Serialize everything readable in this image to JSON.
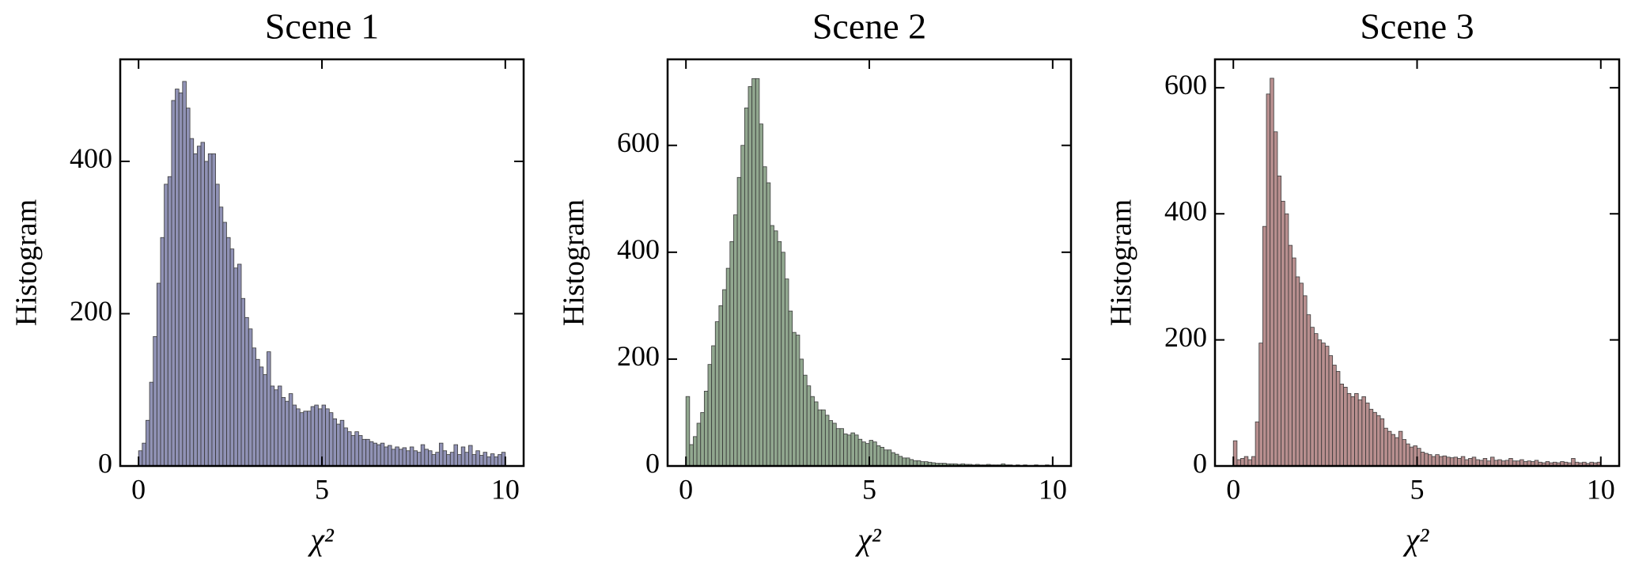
{
  "chart_data": [
    {
      "type": "histogram",
      "title": "Scene 1",
      "xlabel": "χ²",
      "ylabel": "Histogram",
      "color": "#6b6e9c",
      "bins": [
        0,
        0.1,
        0.2,
        0.3,
        0.4,
        0.5,
        0.6,
        0.7,
        0.8,
        0.9,
        1,
        1.1,
        1.2,
        1.3,
        1.4,
        1.5,
        1.6,
        1.7,
        1.8,
        1.9,
        2,
        2.1,
        2.2,
        2.3,
        2.4,
        2.5,
        2.6,
        2.7,
        2.8,
        2.9,
        3,
        3.1,
        3.2,
        3.3,
        3.4,
        3.5,
        3.6,
        3.7,
        3.8,
        3.9,
        4,
        4.1,
        4.2,
        4.3,
        4.4,
        4.5,
        4.6,
        4.7,
        4.8,
        4.9,
        5,
        5.1,
        5.2,
        5.3,
        5.4,
        5.5,
        5.6,
        5.7,
        5.8,
        5.9,
        6,
        6.1,
        6.2,
        6.3,
        6.4,
        6.5,
        6.6,
        6.7,
        6.8,
        6.9,
        7,
        7.1,
        7.2,
        7.3,
        7.4,
        7.5,
        7.6,
        7.7,
        7.8,
        7.9,
        8,
        8.1,
        8.2,
        8.3,
        8.4,
        8.5,
        8.6,
        8.7,
        8.8,
        8.9,
        9,
        9.1,
        9.2,
        9.3,
        9.4,
        9.5,
        9.6,
        9.7,
        9.8,
        9.9,
        10
      ],
      "values": [
        20,
        30,
        60,
        110,
        170,
        240,
        300,
        370,
        380,
        480,
        495,
        490,
        505,
        470,
        430,
        410,
        420,
        425,
        400,
        410,
        410,
        370,
        340,
        320,
        300,
        285,
        260,
        265,
        220,
        195,
        180,
        155,
        140,
        130,
        120,
        150,
        105,
        100,
        105,
        90,
        85,
        95,
        80,
        75,
        70,
        72,
        72,
        78,
        80,
        75,
        80,
        75,
        70,
        62,
        55,
        60,
        50,
        45,
        40,
        45,
        40,
        35,
        35,
        32,
        30,
        28,
        30,
        25,
        27,
        22,
        25,
        22,
        24,
        20,
        25,
        20,
        18,
        28,
        22,
        20,
        15,
        18,
        30,
        20,
        15,
        18,
        28,
        15,
        25,
        18,
        27,
        15,
        20,
        14,
        18,
        12,
        16,
        12,
        15,
        18
      ],
      "xlim": [
        -0.5,
        10.5
      ],
      "ylim": [
        0,
        534
      ],
      "xticks": [
        0,
        5,
        10
      ],
      "yticks": [
        0,
        200,
        400
      ]
    },
    {
      "type": "histogram",
      "title": "Scene 2",
      "xlabel": "χ²",
      "ylabel": "Histogram",
      "color": "#6c8a6a",
      "bins": [
        0,
        0.1,
        0.2,
        0.3,
        0.4,
        0.5,
        0.6,
        0.7,
        0.8,
        0.9,
        1,
        1.1,
        1.2,
        1.3,
        1.4,
        1.5,
        1.6,
        1.7,
        1.8,
        1.9,
        2,
        2.1,
        2.2,
        2.3,
        2.4,
        2.5,
        2.6,
        2.7,
        2.8,
        2.9,
        3,
        3.1,
        3.2,
        3.3,
        3.4,
        3.5,
        3.6,
        3.7,
        3.8,
        3.9,
        4,
        4.1,
        4.2,
        4.3,
        4.4,
        4.5,
        4.6,
        4.7,
        4.8,
        4.9,
        5,
        5.1,
        5.2,
        5.3,
        5.4,
        5.5,
        5.6,
        5.7,
        5.8,
        5.9,
        6,
        6.1,
        6.2,
        6.3,
        6.4,
        6.5,
        6.6,
        6.7,
        6.8,
        6.9,
        7,
        7.1,
        7.2,
        7.3,
        7.4,
        7.5,
        7.6,
        7.7,
        7.8,
        7.9,
        8,
        8.1,
        8.2,
        8.3,
        8.4,
        8.5,
        8.6,
        8.7,
        8.8,
        8.9,
        9,
        9.1,
        9.2,
        9.3,
        9.4,
        9.5,
        9.6,
        9.7,
        9.8,
        9.9,
        10
      ],
      "values": [
        130,
        40,
        55,
        80,
        100,
        140,
        190,
        225,
        270,
        300,
        330,
        370,
        420,
        470,
        540,
        600,
        670,
        710,
        725,
        725,
        640,
        560,
        530,
        450,
        440,
        420,
        400,
        350,
        290,
        250,
        245,
        200,
        170,
        150,
        130,
        120,
        105,
        105,
        95,
        85,
        80,
        70,
        70,
        60,
        58,
        62,
        58,
        50,
        45,
        42,
        48,
        45,
        38,
        35,
        30,
        30,
        25,
        22,
        18,
        15,
        15,
        12,
        10,
        10,
        8,
        8,
        7,
        6,
        5,
        5,
        5,
        4,
        4,
        4,
        3,
        4,
        3,
        3,
        2,
        3,
        2,
        2,
        3,
        2,
        2,
        2,
        4,
        2,
        2,
        1,
        2,
        1,
        2,
        1,
        1,
        2,
        1,
        1,
        2,
        1
      ],
      "xlim": [
        -0.5,
        10.5
      ],
      "ylim": [
        0,
        761
      ],
      "xticks": [
        0,
        5,
        10
      ],
      "yticks": [
        0,
        200,
        400,
        600
      ]
    },
    {
      "type": "histogram",
      "title": "Scene 3",
      "xlabel": "χ²",
      "ylabel": "Histogram",
      "color": "#a06a6a",
      "bins": [
        0,
        0.1,
        0.2,
        0.3,
        0.4,
        0.5,
        0.6,
        0.7,
        0.8,
        0.9,
        1,
        1.1,
        1.2,
        1.3,
        1.4,
        1.5,
        1.6,
        1.7,
        1.8,
        1.9,
        2,
        2.1,
        2.2,
        2.3,
        2.4,
        2.5,
        2.6,
        2.7,
        2.8,
        2.9,
        3,
        3.1,
        3.2,
        3.3,
        3.4,
        3.5,
        3.6,
        3.7,
        3.8,
        3.9,
        4,
        4.1,
        4.2,
        4.3,
        4.4,
        4.5,
        4.6,
        4.7,
        4.8,
        4.9,
        5,
        5.1,
        5.2,
        5.3,
        5.4,
        5.5,
        5.6,
        5.7,
        5.8,
        5.9,
        6,
        6.1,
        6.2,
        6.3,
        6.4,
        6.5,
        6.6,
        6.7,
        6.8,
        6.9,
        7,
        7.1,
        7.2,
        7.3,
        7.4,
        7.5,
        7.6,
        7.7,
        7.8,
        7.9,
        8,
        8.1,
        8.2,
        8.3,
        8.4,
        8.5,
        8.6,
        8.7,
        8.8,
        8.9,
        9,
        9.1,
        9.2,
        9.3,
        9.4,
        9.5,
        9.6,
        9.7,
        9.8,
        9.9,
        10
      ],
      "values": [
        40,
        10,
        12,
        15,
        10,
        15,
        70,
        195,
        380,
        590,
        615,
        530,
        460,
        420,
        400,
        350,
        330,
        300,
        290,
        270,
        240,
        220,
        210,
        200,
        195,
        190,
        175,
        160,
        150,
        130,
        125,
        115,
        110,
        115,
        105,
        110,
        100,
        90,
        85,
        80,
        75,
        60,
        55,
        50,
        45,
        55,
        42,
        35,
        30,
        32,
        28,
        22,
        20,
        18,
        15,
        18,
        15,
        16,
        14,
        13,
        14,
        12,
        15,
        10,
        12,
        14,
        10,
        9,
        12,
        8,
        14,
        9,
        10,
        8,
        9,
        12,
        8,
        8,
        10,
        7,
        8,
        7,
        9,
        6,
        5,
        7,
        5,
        6,
        5,
        7,
        6,
        5,
        12,
        6,
        5,
        6,
        4,
        6,
        5,
        6
      ],
      "xlim": [
        -0.5,
        10.5
      ],
      "ylim": [
        0,
        645
      ],
      "xticks": [
        0,
        5,
        10
      ],
      "yticks": [
        0,
        200,
        400,
        600
      ]
    }
  ]
}
